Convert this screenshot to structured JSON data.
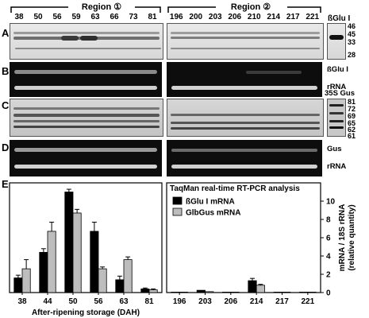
{
  "figure": {
    "regions": [
      "Region ①",
      "Region ②"
    ],
    "lanes_region1": [
      "38",
      "50",
      "56",
      "59",
      "63",
      "66",
      "73",
      "81"
    ],
    "lanes_region2": [
      "196",
      "200",
      "203",
      "206",
      "210",
      "214",
      "217",
      "221"
    ],
    "panel_letters": [
      "A",
      "B",
      "C",
      "D",
      "E"
    ],
    "antibody_label": "ßGlu I",
    "mw_markers_A": [
      "46",
      "45",
      "33",
      "28"
    ],
    "mw_markers_C": [
      "81",
      "72",
      "69",
      "65",
      "62",
      "61"
    ],
    "row_labels": {
      "B_top": "ßGlu I",
      "B_bottom": "rRNA",
      "C_top": "35S Gus",
      "D_top": "Gus",
      "D_bottom": "rRNA"
    },
    "colors": {
      "dark_series": "#000000",
      "light_series": "#bdbdbd"
    }
  },
  "chart_data": {
    "type": "bar",
    "title": "TaqMan real-time RT-PCR analysis",
    "xlabel": "After-ripening storage (DAH)",
    "ylabel": "mRNA / 18S rRNA (relative quantity)",
    "ylabel_lines": [
      "mRNA / 18S rRNA",
      "(relative quantity)"
    ],
    "ylim": [
      0,
      12
    ],
    "yticks": [
      "0",
      "2",
      "4",
      "6",
      "8",
      "10"
    ],
    "categories": [
      "38",
      "44",
      "50",
      "56",
      "63",
      "81",
      "196",
      "203",
      "206",
      "214",
      "217",
      "221"
    ],
    "series": [
      {
        "name": "ßGlu I mRNA",
        "values": [
          1.6,
          4.4,
          11.0,
          6.7,
          1.4,
          0.4,
          0.05,
          0.25,
          0.05,
          1.3,
          0.05,
          0.05
        ],
        "errors": [
          0.3,
          0.4,
          0.3,
          1.0,
          0.4,
          0.1,
          0.05,
          0.05,
          0.05,
          0.25,
          0.05,
          0.05
        ]
      },
      {
        "name": "GlbGus mRNA",
        "values": [
          2.6,
          6.7,
          8.7,
          2.6,
          3.6,
          0.3,
          0.05,
          0.1,
          0.05,
          0.8,
          0.05,
          0.05
        ],
        "errors": [
          1.0,
          1.0,
          0.4,
          0.2,
          0.3,
          0.1,
          0.05,
          0.05,
          0.05,
          0.1,
          0.05,
          0.05
        ]
      }
    ],
    "legend_placement": "top-right",
    "grid": false
  }
}
